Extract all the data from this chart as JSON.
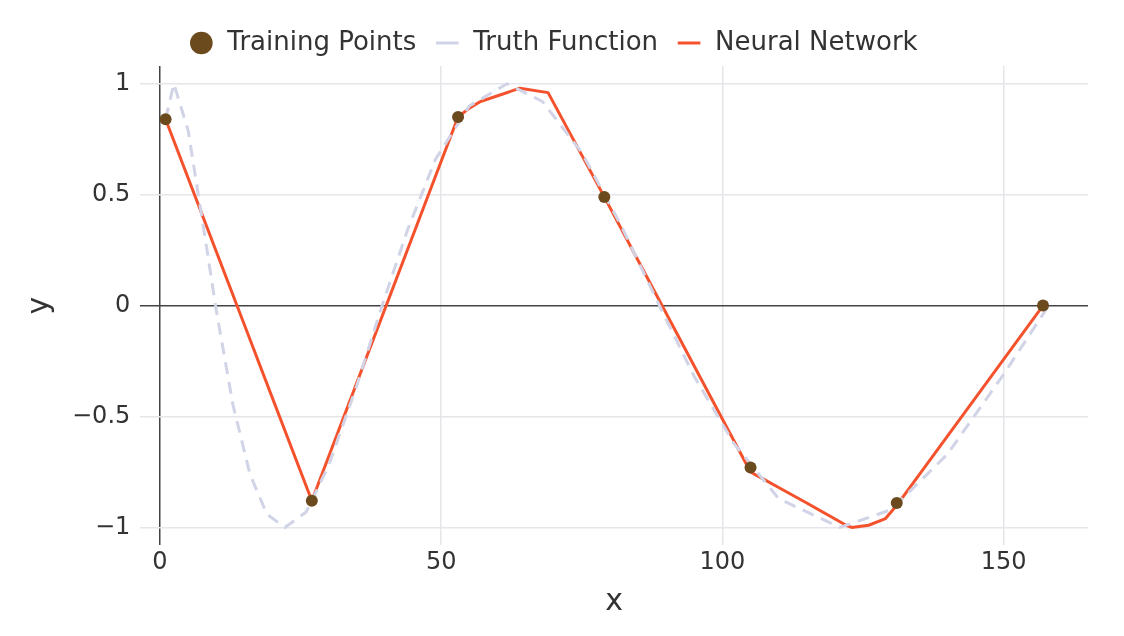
{
  "chart_data": {
    "type": "line",
    "xlabel": "x",
    "ylabel": "y",
    "xlim": [
      -3.5,
      165
    ],
    "ylim": [
      -1.08,
      1.08
    ],
    "xticks": [
      0,
      50,
      100,
      150
    ],
    "yticks": [
      {
        "value": -1,
        "label": "−1"
      },
      {
        "value": -0.5,
        "label": "−0.5"
      },
      0,
      0.5,
      1
    ],
    "grid": true,
    "legend": "top",
    "series": [
      {
        "name": "Truth Function",
        "color": "#d0d4e6",
        "line_style": "dashed",
        "marker": "none",
        "x": [
          1,
          2.47,
          5,
          8,
          10,
          13,
          16,
          19,
          22.2,
          26,
          30,
          35,
          39.5,
          44,
          49,
          55,
          61.7,
          68,
          75,
          82,
          88.8,
          95,
          102,
          110,
          120.9,
          130,
          140,
          150,
          158
        ],
        "values": [
          0.84,
          1.0,
          0.79,
          0.31,
          -0.02,
          -0.45,
          -0.76,
          -0.94,
          -1.0,
          -0.93,
          -0.72,
          -0.36,
          0,
          0.34,
          0.66,
          0.9,
          1.0,
          0.92,
          0.69,
          0.36,
          0,
          -0.32,
          -0.62,
          -0.87,
          -1.0,
          -0.92,
          -0.67,
          -0.31,
          0
        ]
      },
      {
        "name": "Neural Network",
        "color": "#f4522d",
        "line_style": "solid",
        "marker": "none",
        "x": [
          1,
          27,
          53,
          55,
          57,
          64,
          69,
          79,
          105,
          110,
          115,
          122,
          123,
          126,
          129,
          131,
          157
        ],
        "values": [
          0.84,
          -0.88,
          0.85,
          0.89,
          0.92,
          0.98,
          0.96,
          0.49,
          -0.75,
          -0.82,
          -0.89,
          -0.99,
          -1.0,
          -0.99,
          -0.96,
          -0.9,
          0
        ]
      },
      {
        "name": "Training Points",
        "type": "scatter",
        "color": "#6b4a1e",
        "marker": "circle",
        "x": [
          1,
          27,
          53,
          79,
          105,
          131,
          157
        ],
        "values": [
          0.84,
          -0.88,
          0.85,
          0.49,
          -0.73,
          -0.89,
          0
        ]
      }
    ]
  }
}
